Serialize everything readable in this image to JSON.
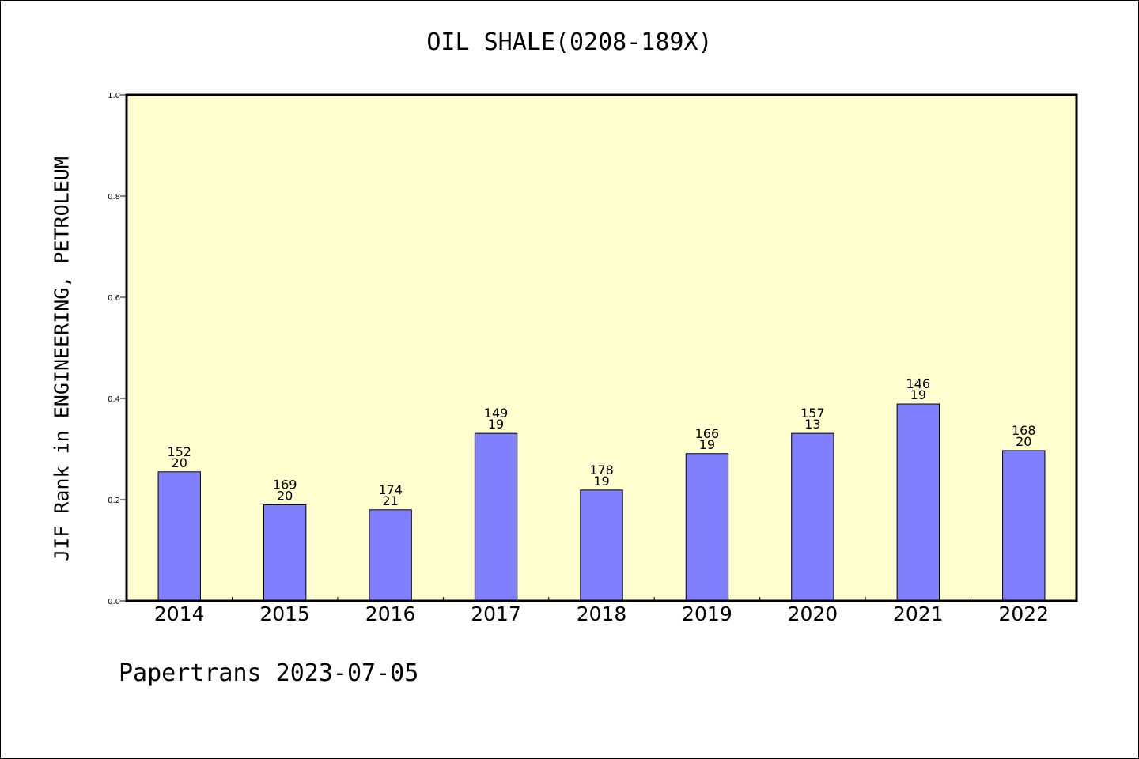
{
  "chart_data": {
    "type": "bar",
    "title": "OIL SHALE(0208-189X)",
    "ylabel": "JIF Rank in ENGINEERING, PETROLEUM",
    "xlabel": "",
    "categories": [
      "2014",
      "2015",
      "2016",
      "2017",
      "2018",
      "2019",
      "2020",
      "2021",
      "2022"
    ],
    "values": [
      0.255,
      0.19,
      0.18,
      0.331,
      0.219,
      0.291,
      0.331,
      0.389,
      0.297
    ],
    "rank_labels": [
      "152",
      "169",
      "174",
      "149",
      "178",
      "166",
      "157",
      "146",
      "168"
    ],
    "count_labels": [
      "20",
      "20",
      "21",
      "19",
      "19",
      "19",
      "13",
      "19",
      "20"
    ],
    "ylim": [
      0,
      1.0
    ],
    "yticks": [
      "0.0",
      "0.2",
      "0.4",
      "0.6",
      "0.8",
      "1.0"
    ],
    "grid": false,
    "colors": {
      "plot_background": "#ffffd0",
      "bar_fill": "#8080ff",
      "bar_stroke": "#000000"
    }
  },
  "footer": {
    "text": "Papertrans 2023-07-05"
  }
}
